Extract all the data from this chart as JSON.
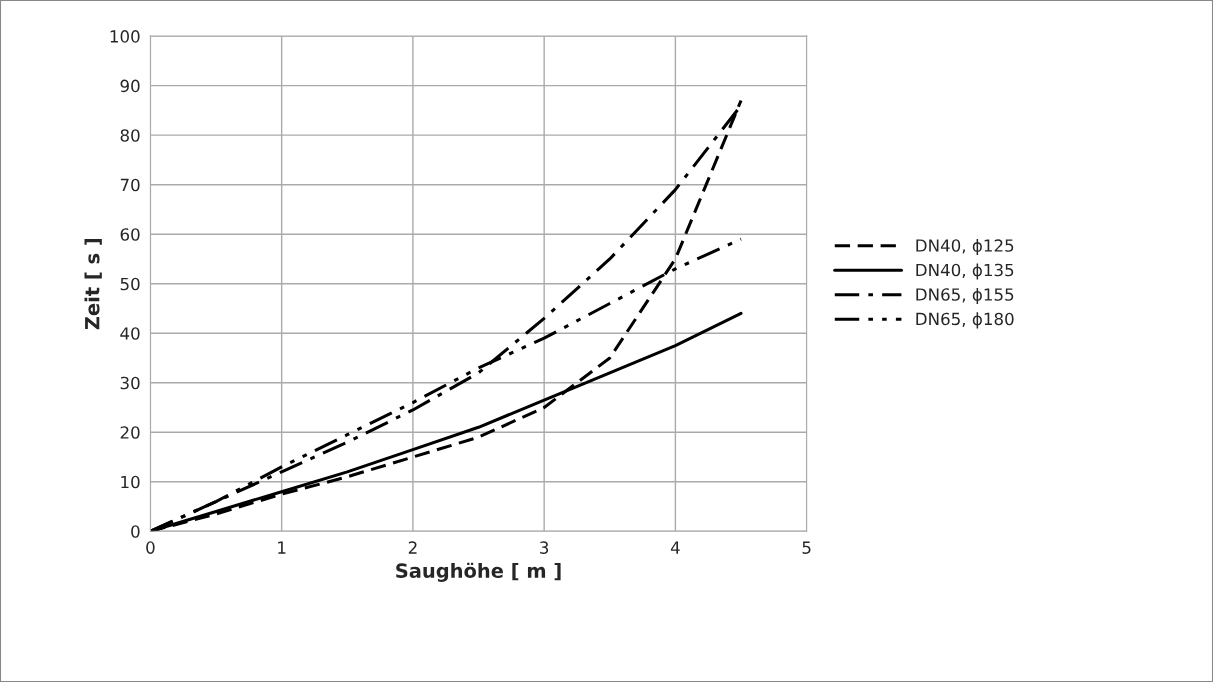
{
  "chart_data": {
    "type": "line",
    "xlabel": "Saughöhe [ m ]",
    "ylabel": "Zeit [ s ]",
    "x": [
      0,
      0.5,
      1,
      1.5,
      2,
      2.5,
      3,
      3.5,
      4,
      4.5
    ],
    "series": [
      {
        "name": "DN40, ϕ125",
        "color": "#000000",
        "line_style": "dashed",
        "values": [
          0,
          3.5,
          7.5,
          11,
          15,
          19,
          25,
          35,
          55,
          87
        ]
      },
      {
        "name": "DN40, ϕ135",
        "color": "#000000",
        "line_style": "solid",
        "values": [
          0,
          4,
          8,
          12,
          16.5,
          21,
          26.5,
          32,
          37.5,
          44
        ]
      },
      {
        "name": "DN65, ϕ155",
        "color": "#000000",
        "line_style": "dashdot",
        "values": [
          0,
          6,
          12,
          18,
          24.5,
          32,
          43,
          55,
          69,
          86
        ]
      },
      {
        "name": "DN65, ϕ180",
        "color": "#000000",
        "line_style": "dashdotdot",
        "values": [
          0,
          6,
          13,
          19.5,
          26,
          33,
          39,
          46,
          53,
          59
        ]
      }
    ],
    "xlim": [
      0,
      5
    ],
    "xticks": [
      0,
      1,
      2,
      3,
      4,
      5
    ],
    "ylim": [
      0,
      100
    ],
    "yticks": [
      0,
      10,
      20,
      30,
      40,
      50,
      60,
      70,
      80,
      90,
      100
    ],
    "grid": true,
    "legend": "right",
    "marker": "none"
  }
}
